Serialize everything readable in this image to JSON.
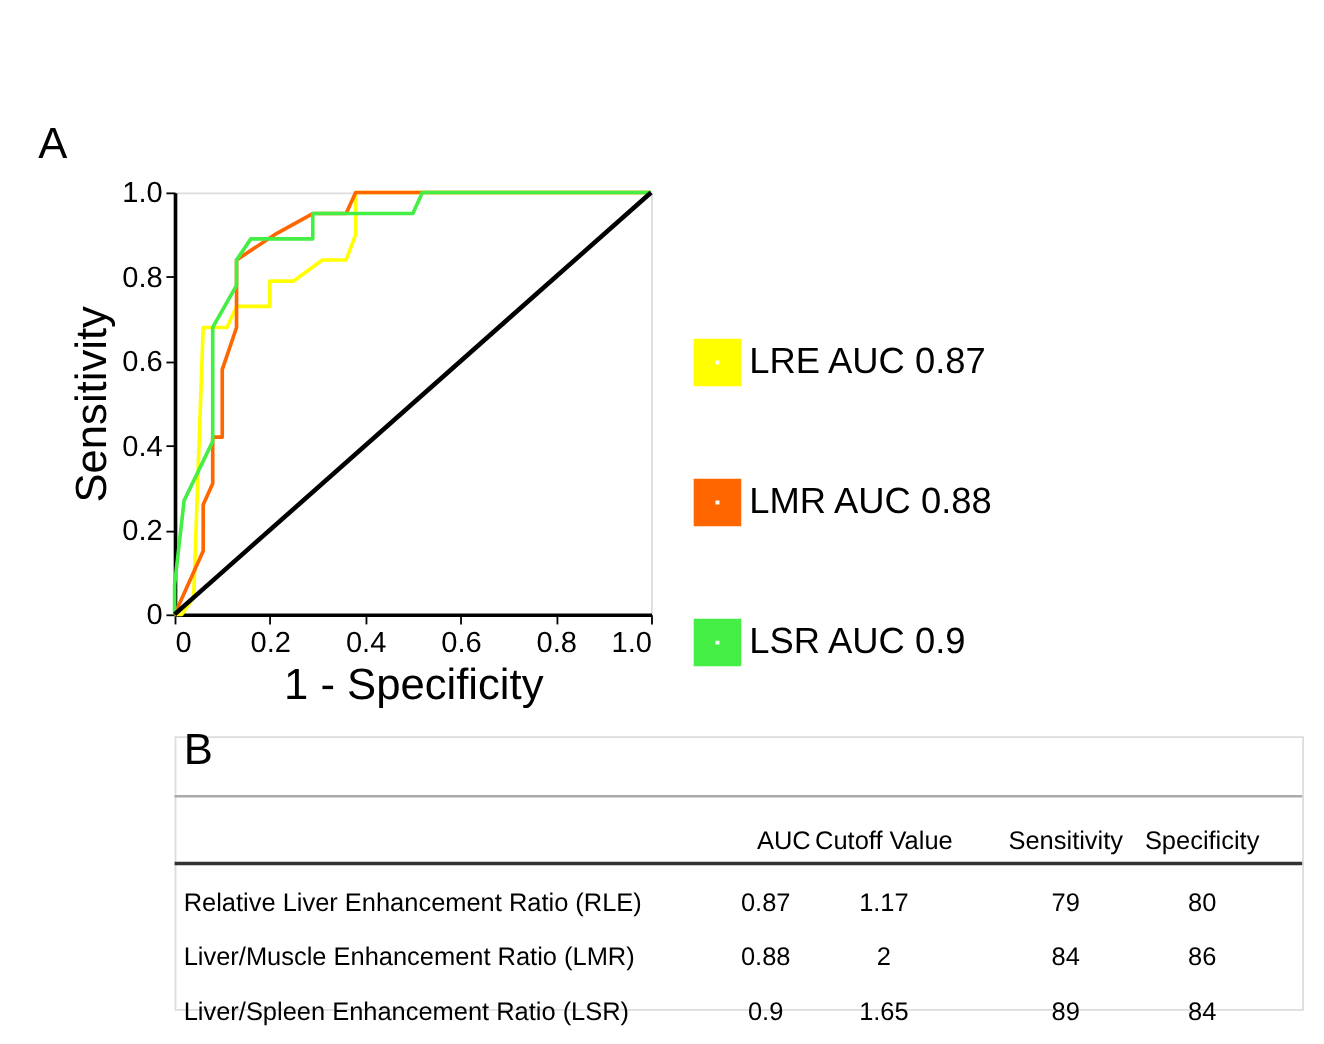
{
  "chart_data": {
    "type": "line",
    "xlabel": "1 - Specificity",
    "ylabel": "Sensitivity",
    "xlim": [
      0,
      1
    ],
    "ylim": [
      0,
      1
    ],
    "xticks": [
      {
        "value": 0,
        "label": "0"
      },
      0.2,
      0.4,
      0.6,
      0.8,
      {
        "value": 1,
        "label": "1.0"
      }
    ],
    "yticks": [
      {
        "value": 0,
        "label": "0"
      },
      0.2,
      0.4,
      0.6,
      0.8,
      {
        "value": 1,
        "label": "1.0"
      }
    ],
    "grid": false,
    "legend": "right",
    "marker": "none",
    "line_style": "solid",
    "series": [
      {
        "name": "LRE AUC 0.87",
        "color": "#ffff00",
        "x": [
          0,
          0.015,
          0.04,
          0.06,
          0.11,
          0.13,
          0.2,
          0.2,
          0.25,
          0.31,
          0.36,
          0.38,
          0.38,
          1
        ],
        "values": [
          0,
          0,
          0.04,
          0.68,
          0.68,
          0.73,
          0.73,
          0.79,
          0.79,
          0.84,
          0.84,
          0.9,
          1,
          1
        ]
      },
      {
        "name": "LMR AUC 0.88",
        "color": "#ff6600",
        "x": [
          0,
          0.06,
          0.06,
          0.08,
          0.08,
          0.1,
          0.1,
          0.13,
          0.13,
          0.21,
          0.29,
          0.36,
          0.38,
          1
        ],
        "values": [
          0,
          0.15,
          0.26,
          0.31,
          0.42,
          0.42,
          0.58,
          0.68,
          0.84,
          0.9,
          0.95,
          0.95,
          1,
          1
        ]
      },
      {
        "name": "LSR AUC 0.9",
        "color": "#44ee44",
        "x": [
          0,
          0,
          0.02,
          0.08,
          0.08,
          0.13,
          0.13,
          0.16,
          0.29,
          0.29,
          0.5,
          0.52,
          1
        ],
        "values": [
          0,
          0.07,
          0.27,
          0.41,
          0.68,
          0.78,
          0.84,
          0.89,
          0.89,
          0.95,
          0.95,
          1,
          1
        ]
      },
      {
        "color": "#000000",
        "x": [
          0,
          1
        ],
        "values": [
          0,
          1
        ]
      }
    ],
    "annotations": [
      "A",
      "B",
      "AUC",
      "Cutoff Value",
      "Sensitivity",
      "Specificity",
      "Relative Liver Enhancement Ratio (RLE)",
      "0.87",
      "1.17",
      "79",
      "80",
      "Liver/Muscle Enhancement Ratio (LMR)",
      "0.88",
      "2",
      "84",
      "86",
      "Liver/Spleen Enhancement Ratio (LSR)",
      "0.9",
      "1.65",
      "89",
      "84"
    ]
  }
}
